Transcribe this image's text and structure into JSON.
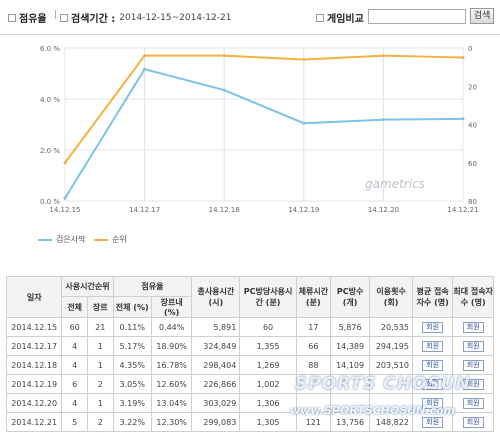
{
  "toolbar": {
    "share_label": "점유율",
    "search_period_label": "검색기간 :",
    "search_period_value": "2014-12-15~2014-12-21",
    "game_compare_label": "게임비교 :",
    "game_compare_value": "",
    "game_compare_placeholder": "",
    "search_button_label": "검색"
  },
  "chart": {
    "watermark": "gametrics",
    "legend": [
      {
        "name": "검은사막",
        "color": "#7ec3e6"
      },
      {
        "name": "순위",
        "color": "#f5b042"
      }
    ]
  },
  "chart_data": {
    "type": "line",
    "x": [
      "14.12.15",
      "14.12.17",
      "14.12.18",
      "14.12.19",
      "14.12.20",
      "14.12.21"
    ],
    "series": [
      {
        "name": "검은사막",
        "axis": "left",
        "color": "#7ec3e6",
        "values": [
          0.11,
          5.17,
          4.35,
          3.05,
          3.19,
          3.22
        ]
      },
      {
        "name": "순위",
        "axis": "right",
        "color": "#f5b042",
        "values": [
          60,
          4,
          4,
          6,
          4,
          5
        ]
      }
    ],
    "yleft": {
      "ticks": [
        "0.0 %",
        "2.0 %",
        "4.0 %",
        "6.0 %"
      ],
      "min": 0,
      "max": 6
    },
    "yright": {
      "ticks": [
        "0",
        "20",
        "40",
        "60",
        "80"
      ],
      "min": 0,
      "max": 80,
      "inverted": true
    },
    "grid": true,
    "legend_position": "bottom-left"
  },
  "table": {
    "headers": {
      "date": "일자",
      "rank_group": "사용시간순위",
      "rank_total": "전체",
      "rank_genre": "장르",
      "share_group": "점유율",
      "share_total": "전체 (%)",
      "share_genre": "장르내 (%)",
      "total_time": "총사용시간 (시)",
      "pcbang_time": "PC방당사용시간 (분)",
      "stay_time": "체류시간 (분)",
      "pc_count": "PC방수 (개)",
      "usage_count": "이용횟수 (회)",
      "avg_conn": "평균 접속자수 (명)",
      "max_conn": "최대 접속자수 (명)"
    },
    "view_label": "회원",
    "rows": [
      {
        "date": "2014.12.15",
        "rank_total": "60",
        "rank_genre": "21",
        "share_total": "0.11%",
        "share_genre": "0.44%",
        "total_time": "5,891",
        "pcbang_time": "60",
        "stay_time": "17",
        "pc_count": "5,876",
        "usage_count": "20,535"
      },
      {
        "date": "2014.12.17",
        "rank_total": "4",
        "rank_genre": "1",
        "share_total": "5.17%",
        "share_genre": "18.90%",
        "total_time": "324,849",
        "pcbang_time": "1,355",
        "stay_time": "66",
        "pc_count": "14,389",
        "usage_count": "294,195"
      },
      {
        "date": "2014.12.18",
        "rank_total": "4",
        "rank_genre": "1",
        "share_total": "4.35%",
        "share_genre": "16.78%",
        "total_time": "298,404",
        "pcbang_time": "1,269",
        "stay_time": "88",
        "pc_count": "14,109",
        "usage_count": "203,510"
      },
      {
        "date": "2014.12.19",
        "rank_total": "6",
        "rank_genre": "2",
        "share_total": "3.05%",
        "share_genre": "12.60%",
        "total_time": "226,866",
        "pcbang_time": "1,002",
        "stay_time": "",
        "pc_count": "",
        "usage_count": ""
      },
      {
        "date": "2014.12.20",
        "rank_total": "4",
        "rank_genre": "1",
        "share_total": "3.19%",
        "share_genre": "13.04%",
        "total_time": "303,029",
        "pcbang_time": "1,306",
        "stay_time": "",
        "pc_count": "",
        "usage_count": ""
      },
      {
        "date": "2014.12.21",
        "rank_total": "5",
        "rank_genre": "2",
        "share_total": "3.22%",
        "share_genre": "12.30%",
        "total_time": "299,083",
        "pcbang_time": "1,305",
        "stay_time": "121",
        "pc_count": "13,756",
        "usage_count": "148,822"
      }
    ]
  },
  "watermark_text": "SPORTS CHOSUN",
  "watermark_url": "www.SPORTSCHOSUN.com"
}
